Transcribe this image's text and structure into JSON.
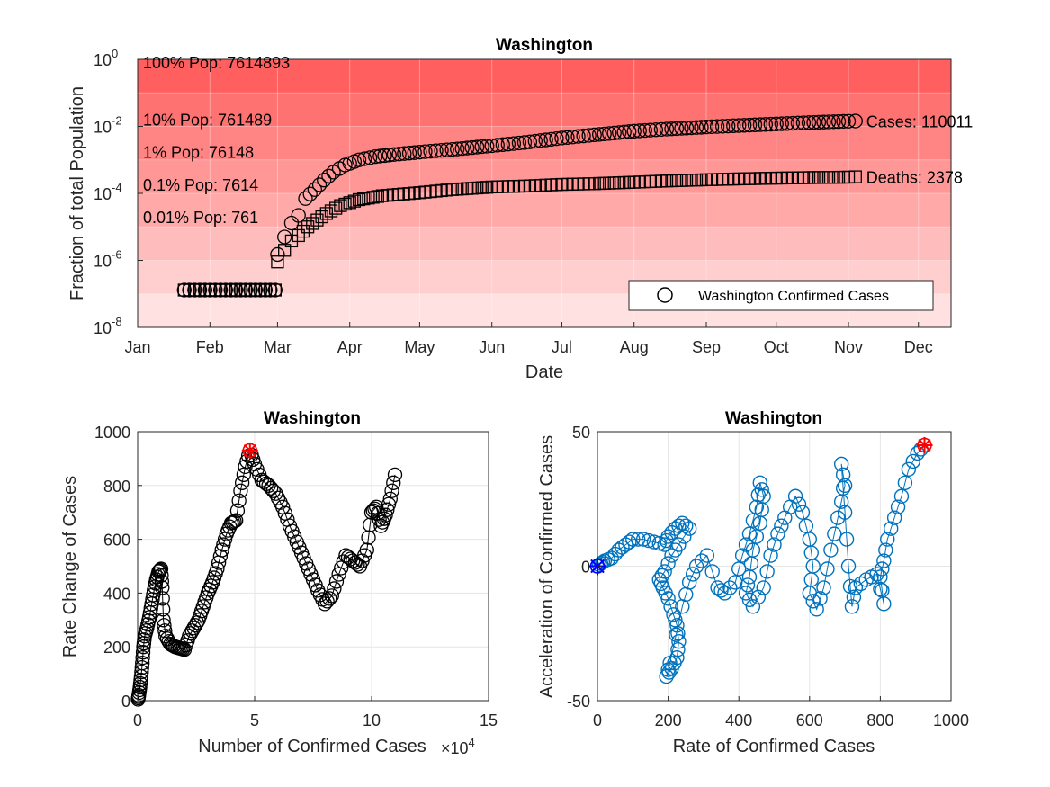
{
  "chart_data": [
    {
      "type": "scatter",
      "title": "Washington",
      "xlabel": "Date",
      "ylabel": "Fraction of total Population",
      "yscale": "log",
      "ylim": [
        1e-08,
        1
      ],
      "ytick_values": [
        1e-08,
        1e-06,
        0.0001,
        0.01,
        1
      ],
      "ytick_exponents": [
        "-8",
        "-6",
        "-4",
        "-2",
        "0"
      ],
      "ytick_base": "10",
      "x_tick_labels": [
        "Jan",
        "Feb",
        "Mar",
        "Apr",
        "May",
        "Jun",
        "Jul",
        "Aug",
        "Sep",
        "Oct",
        "Nov",
        "Dec"
      ],
      "x_tick_dates": [
        "2020-01-01",
        "2020-02-01",
        "2020-03-01",
        "2020-04-01",
        "2020-05-01",
        "2020-06-01",
        "2020-07-01",
        "2020-08-01",
        "2020-09-01",
        "2020-10-01",
        "2020-11-01",
        "2020-12-01"
      ],
      "xlim": [
        "2020-01-01",
        "2020-12-15"
      ],
      "grid": true,
      "population_bands": [
        {
          "label": "100% Pop: 7614893",
          "value": 1
        },
        {
          "label": "10% Pop: 761489",
          "value": 0.1
        },
        {
          "label": "1% Pop: 76148",
          "value": 0.01
        },
        {
          "label": "0.1% Pop: 7614",
          "value": 0.001
        },
        {
          "label": "0.01% Pop: 761",
          "value": 0.0001
        }
      ],
      "series": [
        {
          "name": "Washington Confirmed Cases",
          "marker": "circle",
          "end_label": "Cases: 110011",
          "points": [
            [
              "2020-01-21",
              1.3e-07
            ],
            [
              "2020-02-10",
              1.3e-07
            ],
            [
              "2020-02-29",
              1.3e-07
            ],
            [
              "2020-03-01",
              1.5e-06
            ],
            [
              "2020-03-04",
              5e-06
            ],
            [
              "2020-03-07",
              1.3e-05
            ],
            [
              "2020-03-10",
              2.2e-05
            ],
            [
              "2020-03-13",
              7e-05
            ],
            [
              "2020-03-17",
              0.00013
            ],
            [
              "2020-03-21",
              0.00025
            ],
            [
              "2020-03-25",
              0.00043
            ],
            [
              "2020-03-30",
              0.0007
            ],
            [
              "2020-04-05",
              0.001
            ],
            [
              "2020-04-12",
              0.00125
            ],
            [
              "2020-04-20",
              0.00145
            ],
            [
              "2020-05-01",
              0.0017
            ],
            [
              "2020-05-15",
              0.00205
            ],
            [
              "2020-06-01",
              0.00265
            ],
            [
              "2020-06-15",
              0.0033
            ],
            [
              "2020-07-01",
              0.0045
            ],
            [
              "2020-07-15",
              0.0056
            ],
            [
              "2020-08-01",
              0.0072
            ],
            [
              "2020-08-15",
              0.0083
            ],
            [
              "2020-09-01",
              0.0096
            ],
            [
              "2020-09-15",
              0.0106
            ],
            [
              "2020-10-01",
              0.0118
            ],
            [
              "2020-10-15",
              0.013
            ],
            [
              "2020-11-01",
              0.0143
            ],
            [
              "2020-11-04",
              0.01445
            ]
          ]
        },
        {
          "name": "Deaths",
          "marker": "square",
          "end_label": "Deaths: 2378",
          "points": [
            [
              "2020-01-21",
              1.3e-07
            ],
            [
              "2020-02-10",
              1.3e-07
            ],
            [
              "2020-02-29",
              1.3e-07
            ],
            [
              "2020-03-01",
              9e-07
            ],
            [
              "2020-03-04",
              2e-06
            ],
            [
              "2020-03-07",
              3.8e-06
            ],
            [
              "2020-03-10",
              5.5e-06
            ],
            [
              "2020-03-14",
              1e-05
            ],
            [
              "2020-03-18",
              1.6e-05
            ],
            [
              "2020-03-22",
              2.5e-05
            ],
            [
              "2020-03-28",
              4.3e-05
            ],
            [
              "2020-04-05",
              6.5e-05
            ],
            [
              "2020-04-15",
              8.5e-05
            ],
            [
              "2020-05-01",
              0.000105
            ],
            [
              "2020-05-15",
              0.00013
            ],
            [
              "2020-06-01",
              0.000155
            ],
            [
              "2020-06-15",
              0.000165
            ],
            [
              "2020-07-01",
              0.000185
            ],
            [
              "2020-07-15",
              0.000195
            ],
            [
              "2020-08-01",
              0.000215
            ],
            [
              "2020-08-15",
              0.000235
            ],
            [
              "2020-09-01",
              0.000255
            ],
            [
              "2020-09-15",
              0.00027
            ],
            [
              "2020-10-01",
              0.000285
            ],
            [
              "2020-10-15",
              0.000295
            ],
            [
              "2020-11-01",
              0.000305
            ],
            [
              "2020-11-04",
              0.000312
            ]
          ]
        }
      ],
      "legend": {
        "placement": "bottom-right",
        "entries": [
          "Washington Confirmed Cases"
        ]
      }
    },
    {
      "type": "scatter",
      "title": "Washington",
      "xlabel": "Number of Confirmed Cases",
      "x_exponent_base": "×10",
      "x_exponent_power": "4",
      "ylabel": "Rate Change of Cases",
      "xlim": [
        0,
        15
      ],
      "ylim": [
        0,
        1000
      ],
      "xticks": [
        "0",
        "5",
        "10",
        "15"
      ],
      "yticks": [
        "0",
        "200",
        "400",
        "600",
        "800",
        "1000"
      ],
      "grid": true,
      "marker": "circle",
      "highlight": {
        "x": 4.8,
        "y": 930,
        "color": "#ff0000"
      },
      "points": [
        [
          0.02,
          5
        ],
        [
          0.05,
          20
        ],
        [
          0.1,
          50
        ],
        [
          0.15,
          90
        ],
        [
          0.2,
          140
        ],
        [
          0.25,
          200
        ],
        [
          0.3,
          240
        ],
        [
          0.4,
          270
        ],
        [
          0.5,
          310
        ],
        [
          0.6,
          360
        ],
        [
          0.7,
          410
        ],
        [
          0.8,
          450
        ],
        [
          0.9,
          480
        ],
        [
          1.0,
          490
        ],
        [
          1.05,
          420
        ],
        [
          1.1,
          300
        ],
        [
          1.2,
          240
        ],
        [
          1.4,
          210
        ],
        [
          1.6,
          200
        ],
        [
          1.8,
          195
        ],
        [
          2.0,
          190
        ],
        [
          2.2,
          240
        ],
        [
          2.4,
          270
        ],
        [
          2.6,
          300
        ],
        [
          2.8,
          350
        ],
        [
          3.0,
          400
        ],
        [
          3.2,
          440
        ],
        [
          3.4,
          490
        ],
        [
          3.6,
          560
        ],
        [
          3.8,
          620
        ],
        [
          4.0,
          660
        ],
        [
          4.2,
          670
        ],
        [
          4.4,
          780
        ],
        [
          4.6,
          870
        ],
        [
          4.8,
          930
        ],
        [
          5.0,
          880
        ],
        [
          5.3,
          820
        ],
        [
          5.6,
          800
        ],
        [
          5.9,
          770
        ],
        [
          6.2,
          720
        ],
        [
          6.5,
          650
        ],
        [
          6.8,
          590
        ],
        [
          7.1,
          530
        ],
        [
          7.4,
          470
        ],
        [
          7.7,
          410
        ],
        [
          8.0,
          360
        ],
        [
          8.3,
          390
        ],
        [
          8.6,
          470
        ],
        [
          8.9,
          540
        ],
        [
          9.2,
          520
        ],
        [
          9.5,
          500
        ],
        [
          9.8,
          560
        ],
        [
          10.0,
          700
        ],
        [
          10.2,
          720
        ],
        [
          10.4,
          650
        ],
        [
          10.6,
          690
        ],
        [
          10.8,
          750
        ],
        [
          11.0,
          840
        ]
      ]
    },
    {
      "type": "scatter",
      "title": "Washington",
      "xlabel": "Rate of Confirmed Cases",
      "ylabel": "Acceleration of Confirmed Cases",
      "xlim": [
        0,
        1000
      ],
      "ylim": [
        -50,
        50
      ],
      "xticks": [
        "0",
        "200",
        "400",
        "600",
        "800",
        "1000"
      ],
      "yticks": [
        "-50",
        "0",
        "50"
      ],
      "grid": true,
      "marker": "circle-line",
      "color": "#0072bd",
      "start_marker": {
        "x": 0,
        "y": 0,
        "color": "#0000ff"
      },
      "highlight": {
        "x": 925,
        "y": 45,
        "color": "#ff0000"
      },
      "points": [
        [
          0,
          0
        ],
        [
          10,
          1
        ],
        [
          20,
          2
        ],
        [
          40,
          3
        ],
        [
          60,
          6
        ],
        [
          80,
          8
        ],
        [
          100,
          10
        ],
        [
          130,
          10
        ],
        [
          160,
          9
        ],
        [
          190,
          8
        ],
        [
          200,
          11
        ],
        [
          220,
          14
        ],
        [
          240,
          16
        ],
        [
          260,
          14
        ],
        [
          230,
          8
        ],
        [
          210,
          4
        ],
        [
          190,
          -2
        ],
        [
          175,
          -5
        ],
        [
          185,
          -8
        ],
        [
          200,
          -12
        ],
        [
          215,
          -18
        ],
        [
          225,
          -22
        ],
        [
          230,
          -28
        ],
        [
          225,
          -34
        ],
        [
          210,
          -38
        ],
        [
          195,
          -41
        ],
        [
          205,
          -36
        ],
        [
          240,
          -15
        ],
        [
          260,
          -6
        ],
        [
          280,
          0
        ],
        [
          310,
          4
        ],
        [
          340,
          -8
        ],
        [
          360,
          -10
        ],
        [
          390,
          -6
        ],
        [
          410,
          4
        ],
        [
          430,
          12
        ],
        [
          450,
          22
        ],
        [
          460,
          31
        ],
        [
          470,
          26
        ],
        [
          460,
          16
        ],
        [
          440,
          6
        ],
        [
          430,
          -4
        ],
        [
          420,
          -10
        ],
        [
          440,
          -15
        ],
        [
          470,
          -8
        ],
        [
          490,
          4
        ],
        [
          510,
          12
        ],
        [
          530,
          18
        ],
        [
          560,
          26
        ],
        [
          580,
          20
        ],
        [
          600,
          10
        ],
        [
          610,
          0
        ],
        [
          600,
          -10
        ],
        [
          620,
          -16
        ],
        [
          640,
          -8
        ],
        [
          660,
          6
        ],
        [
          680,
          18
        ],
        [
          700,
          30
        ],
        [
          690,
          38
        ],
        [
          700,
          20
        ],
        [
          710,
          0
        ],
        [
          720,
          -15
        ],
        [
          730,
          -8
        ],
        [
          760,
          -5
        ],
        [
          790,
          -3
        ],
        [
          810,
          -14
        ],
        [
          800,
          -4
        ],
        [
          810,
          2
        ],
        [
          820,
          10
        ],
        [
          840,
          18
        ],
        [
          860,
          26
        ],
        [
          880,
          36
        ],
        [
          905,
          42
        ],
        [
          925,
          45
        ]
      ]
    }
  ]
}
